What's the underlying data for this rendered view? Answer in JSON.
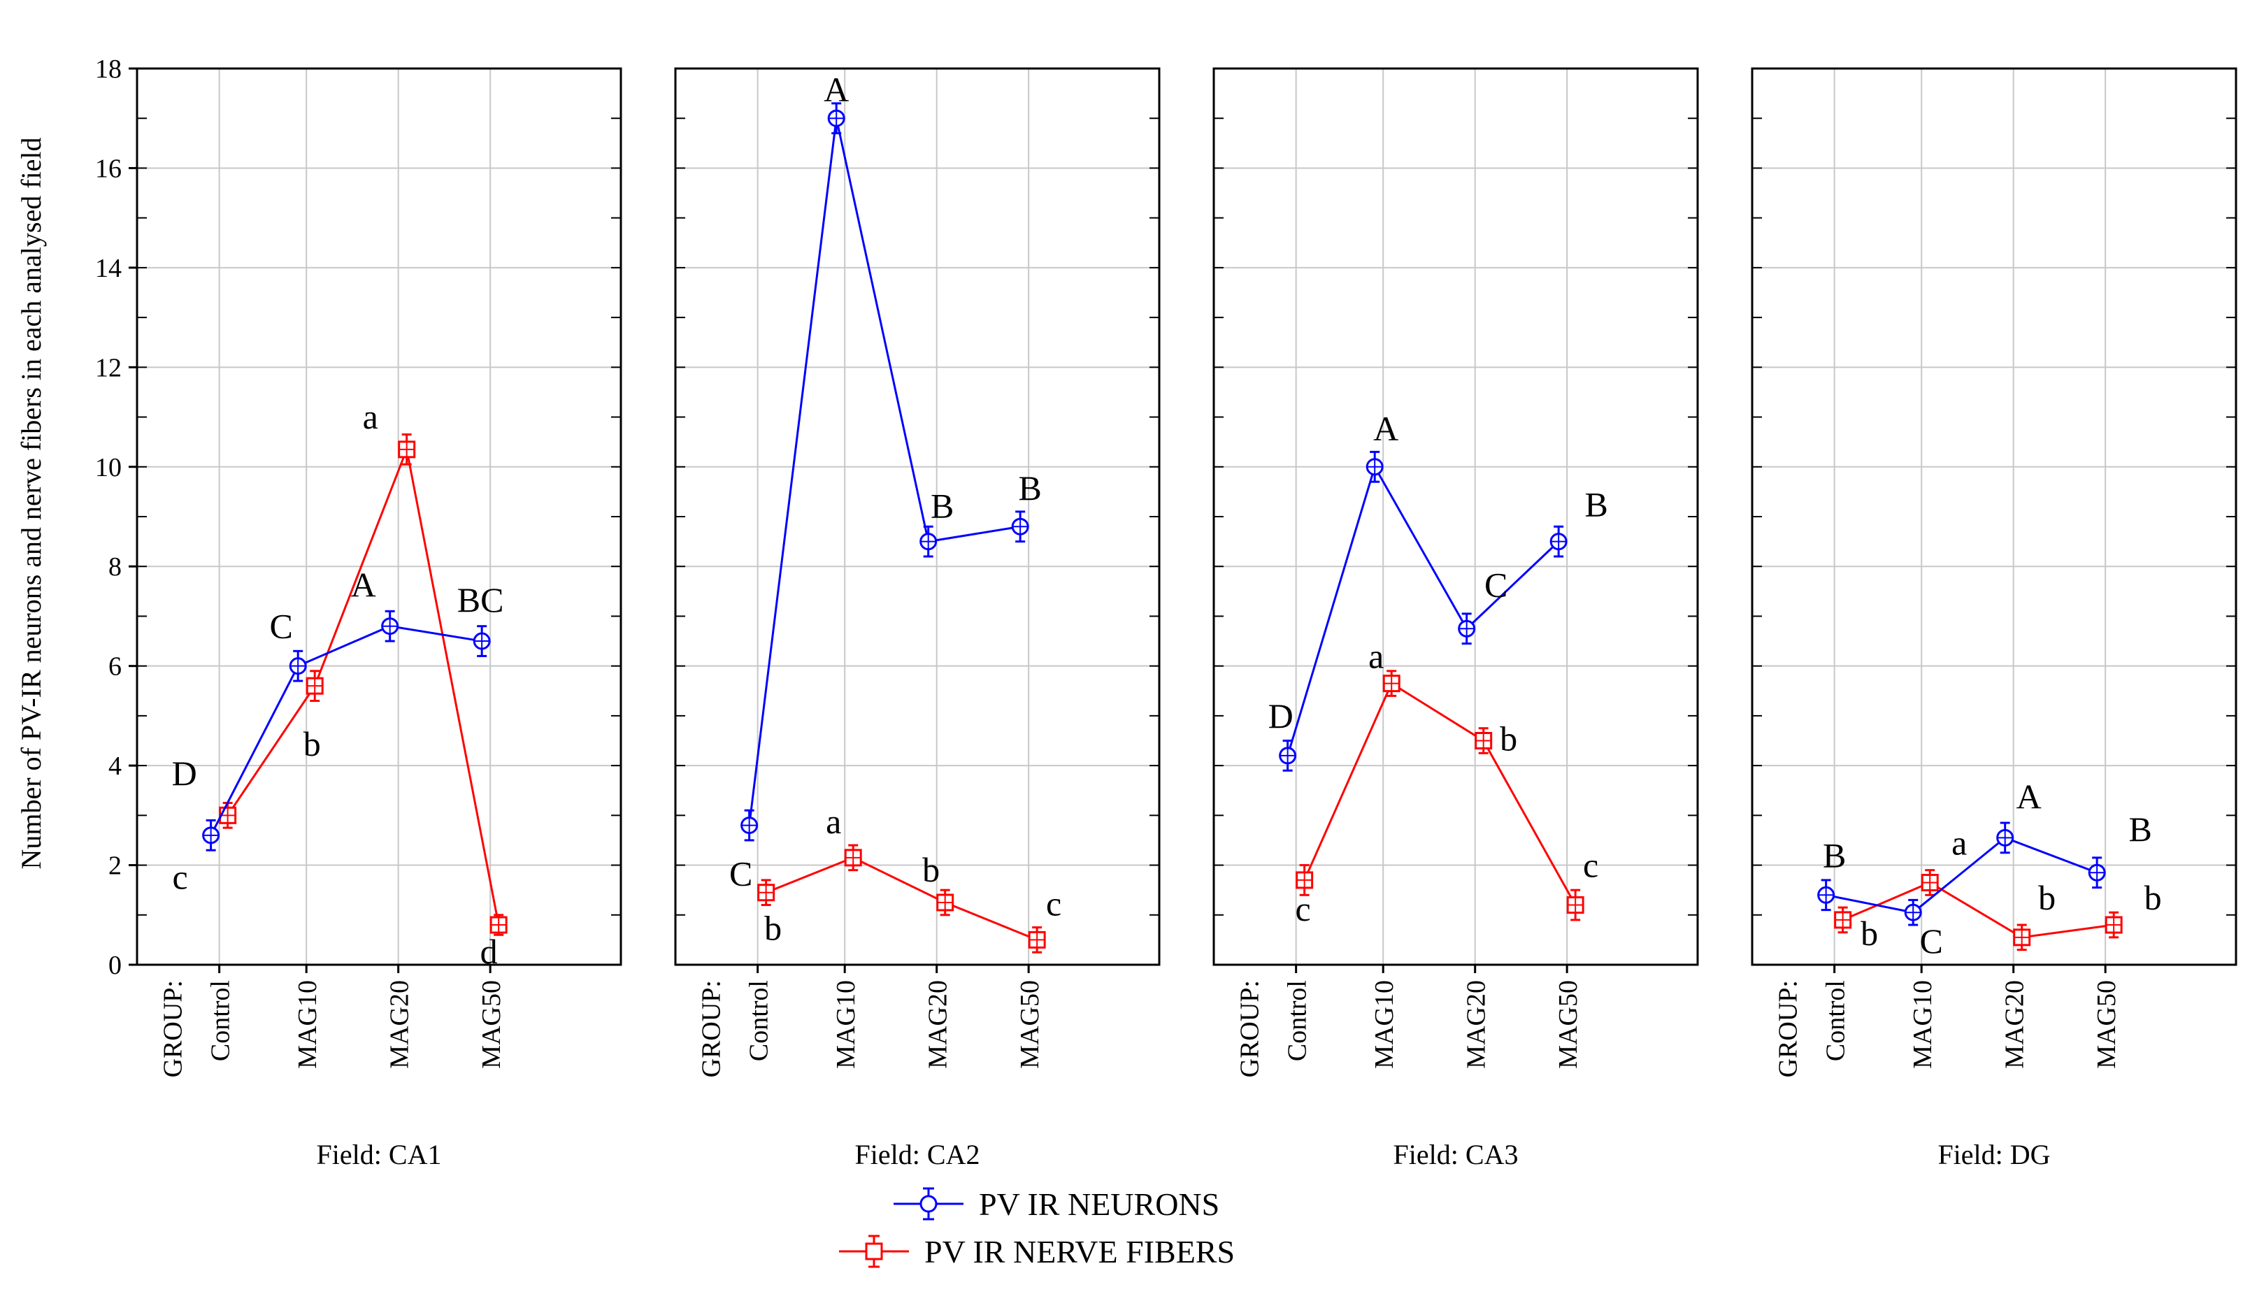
{
  "chart_data": {
    "type": "line",
    "ylabel": "Number of PV-IR neurons and nerve fibers in each analysed field",
    "ylim": [
      0,
      18
    ],
    "yticks": [
      "0",
      "2",
      "4",
      "6",
      "8",
      "10",
      "12",
      "14",
      "16",
      "18"
    ],
    "group_label": "GROUP:",
    "categories": [
      "Control",
      "MAG10",
      "MAG20",
      "MAG50"
    ],
    "grid": true,
    "legend": {
      "placement": "bottom-center",
      "entries": [
        "PV IR NEURONS",
        "PV IR NERVE FIBERS"
      ]
    },
    "colors": {
      "neurons": "#0000ff",
      "fibers": "#ff0000"
    },
    "panels": [
      {
        "field_label": "Field: CA1",
        "neurons": {
          "values": [
            2.6,
            6.0,
            6.8,
            6.5
          ],
          "err": [
            0.3,
            0.3,
            0.3,
            0.3
          ],
          "letters": [
            "D",
            "C",
            "A",
            "BC"
          ]
        },
        "fibers": {
          "values": [
            3.0,
            5.6,
            10.35,
            0.8
          ],
          "err": [
            0.25,
            0.3,
            0.3,
            0.2
          ],
          "letters": [
            "c",
            "b",
            "a",
            "d"
          ]
        }
      },
      {
        "field_label": "Field: CA2",
        "neurons": {
          "values": [
            2.8,
            17.0,
            8.5,
            8.8
          ],
          "err": [
            0.3,
            0.3,
            0.3,
            0.3
          ],
          "letters": [
            "",
            "A",
            "B",
            "B"
          ]
        },
        "fibers": {
          "values": [
            1.45,
            2.15,
            1.25,
            0.5
          ],
          "err": [
            0.25,
            0.25,
            0.25,
            0.25
          ],
          "letters": [
            "b",
            "a",
            "b",
            "c"
          ]
        },
        "extra_letter": "C"
      },
      {
        "field_label": "Field: CA3",
        "neurons": {
          "values": [
            4.2,
            10.0,
            6.75,
            8.5
          ],
          "err": [
            0.3,
            0.3,
            0.3,
            0.3
          ],
          "letters": [
            "D",
            "A",
            "C",
            "B"
          ]
        },
        "fibers": {
          "values": [
            1.7,
            5.65,
            4.5,
            1.2
          ],
          "err": [
            0.3,
            0.25,
            0.25,
            0.3
          ],
          "letters": [
            "c",
            "a",
            "b",
            "c"
          ]
        }
      },
      {
        "field_label": "Field: DG",
        "neurons": {
          "values": [
            1.4,
            1.05,
            2.55,
            1.85
          ],
          "err": [
            0.3,
            0.25,
            0.3,
            0.3
          ],
          "letters": [
            "B",
            "C",
            "A",
            "B"
          ]
        },
        "fibers": {
          "values": [
            0.9,
            1.65,
            0.55,
            0.8
          ],
          "err": [
            0.25,
            0.25,
            0.25,
            0.25
          ],
          "letters": [
            "b",
            "a",
            "b",
            "b"
          ]
        }
      }
    ]
  }
}
